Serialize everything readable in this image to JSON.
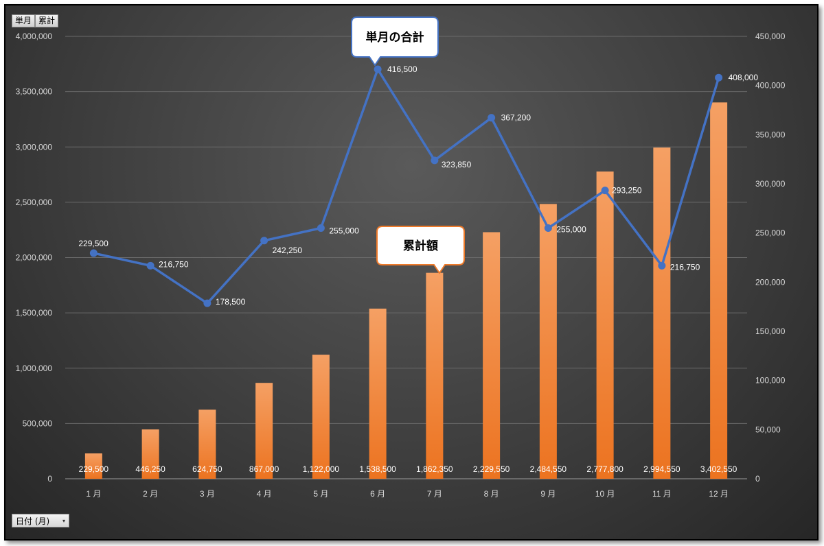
{
  "field_buttons": [
    "単月",
    "累計"
  ],
  "axis_field_button": {
    "label": "日付 (月)",
    "caret": "▾"
  },
  "colors": {
    "bar": "#ee7a2a",
    "bar_light": "#f5a064",
    "line": "#4472c4"
  },
  "chart_data": {
    "type": "bar+line",
    "categories": [
      "1 月",
      "2 月",
      "3 月",
      "4 月",
      "5 月",
      "6 月",
      "7 月",
      "8 月",
      "9 月",
      "10 月",
      "11 月",
      "12 月"
    ],
    "series": [
      {
        "type": "bar",
        "axis": "left",
        "values": [
          229500,
          446250,
          624750,
          867000,
          1122000,
          1538500,
          1862350,
          2229550,
          2484550,
          2777800,
          2994550,
          3402550
        ],
        "labels": [
          "229,500",
          "446,250",
          "624,750",
          "867,000",
          "1,122,000",
          "1,538,500",
          "1,862,350",
          "2,229,550",
          "2,484,550",
          "2,777,800",
          "2,994,550",
          "3,402,550"
        ]
      },
      {
        "type": "line",
        "axis": "right",
        "values": [
          229500,
          216750,
          178500,
          242250,
          255000,
          416500,
          323850,
          367200,
          255000,
          293250,
          216750,
          408000
        ],
        "labels": [
          "229,500",
          "216,750",
          "178,500",
          "242,250",
          "255,000",
          "416,500",
          "323,850",
          "367,200",
          "255,000",
          "293,250",
          "216,750",
          "408,000"
        ]
      }
    ],
    "y_left": {
      "min": 0,
      "max": 4000000,
      "ticks": [
        "0",
        "500,000",
        "1,000,000",
        "1,500,000",
        "2,000,000",
        "2,500,000",
        "3,000,000",
        "3,500,000",
        "4,000,000"
      ]
    },
    "y_right": {
      "min": 0,
      "max": 450000,
      "ticks": [
        "0",
        "50,000",
        "100,000",
        "150,000",
        "200,000",
        "250,000",
        "300,000",
        "350,000",
        "400,000",
        "450,000"
      ]
    },
    "annotations": [
      "単月の合計",
      "累計額"
    ],
    "grid": true,
    "legend": "none"
  }
}
